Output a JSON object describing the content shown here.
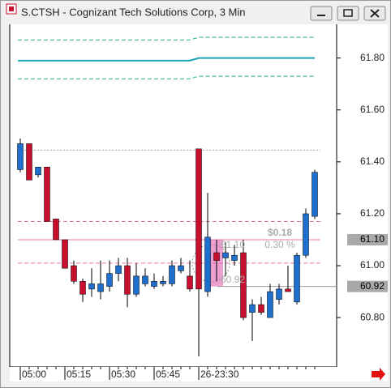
{
  "window": {
    "title": "S.CTSH - Cognizant Tech Solutions Corp, 3 Min"
  },
  "chart_data": {
    "type": "candlestick",
    "categories": [
      "05:00",
      null,
      null,
      null,
      null,
      "05:15",
      null,
      null,
      null,
      null,
      "05:30",
      null,
      null,
      null,
      null,
      "05:45",
      null,
      null,
      null,
      null,
      "26-23:30",
      null,
      null,
      null,
      null,
      null,
      null,
      null,
      null,
      null,
      null,
      null,
      null,
      null
    ],
    "open": [
      61.37,
      61.47,
      61.35,
      61.38,
      61.18,
      61.1,
      61.0,
      60.94,
      60.91,
      60.9,
      60.92,
      60.97,
      61.0,
      60.89,
      60.93,
      60.92,
      60.93,
      60.93,
      60.98,
      60.96,
      61.45,
      60.9,
      61.05,
      61.03,
      61.02,
      61.05,
      60.82,
      60.85,
      60.8,
      60.87,
      60.91,
      60.86,
      61.04,
      61.19
    ],
    "high": [
      61.49,
      61.47,
      61.38,
      61.38,
      61.18,
      61.1,
      61.02,
      60.95,
      60.99,
      61.02,
      61.02,
      61.03,
      61.03,
      61.01,
      60.99,
      60.97,
      60.96,
      61.02,
      61.03,
      61.02,
      61.45,
      61.28,
      61.1,
      61.09,
      61.08,
      61.1,
      60.87,
      60.88,
      60.93,
      60.93,
      61.0,
      61.05,
      61.22,
      61.37
    ],
    "low": [
      61.36,
      61.33,
      61.34,
      61.17,
      61.1,
      60.99,
      60.93,
      60.86,
      60.88,
      60.87,
      60.9,
      60.94,
      60.84,
      60.88,
      60.92,
      60.91,
      60.92,
      60.92,
      60.97,
      60.9,
      60.65,
      60.88,
      60.94,
      60.96,
      61.0,
      60.79,
      60.71,
      60.81,
      60.8,
      60.85,
      60.9,
      60.85,
      61.03,
      61.18
    ],
    "close": [
      61.47,
      61.33,
      61.38,
      61.17,
      61.1,
      60.99,
      60.94,
      60.89,
      60.93,
      60.93,
      60.97,
      61.0,
      60.89,
      60.96,
      60.96,
      60.94,
      60.94,
      61.0,
      61.0,
      60.91,
      60.91,
      61.11,
      61.02,
      61.05,
      61.04,
      60.8,
      60.85,
      60.82,
      60.9,
      60.91,
      60.9,
      61.04,
      61.2,
      61.36
    ],
    "up_color": "#1f6fcc",
    "down_color": "#c8102e",
    "overlays": [
      {
        "color": "#22b573",
        "style": "dashed",
        "values": [
          61.87,
          61.87,
          61.87,
          61.87,
          61.87,
          61.87,
          61.87,
          61.87,
          61.87,
          61.87,
          61.87,
          61.87,
          61.87,
          61.87,
          61.87,
          61.87,
          61.87,
          61.87,
          61.87,
          61.87,
          61.88,
          61.88,
          61.88,
          61.88,
          61.88,
          61.88,
          61.88,
          61.88,
          61.88,
          61.88,
          61.88,
          61.88,
          61.88,
          61.88
        ]
      },
      {
        "color": "#1ba5b5",
        "style": "solid",
        "values": [
          61.79,
          61.79,
          61.79,
          61.79,
          61.79,
          61.79,
          61.79,
          61.79,
          61.79,
          61.79,
          61.79,
          61.79,
          61.79,
          61.79,
          61.79,
          61.79,
          61.79,
          61.79,
          61.79,
          61.79,
          61.8,
          61.8,
          61.8,
          61.8,
          61.8,
          61.8,
          61.8,
          61.8,
          61.8,
          61.8,
          61.8,
          61.8,
          61.8,
          61.8
        ]
      },
      {
        "color": "#22b573",
        "style": "dashed",
        "values": [
          61.72,
          61.72,
          61.72,
          61.72,
          61.72,
          61.72,
          61.72,
          61.72,
          61.72,
          61.72,
          61.72,
          61.72,
          61.72,
          61.72,
          61.72,
          61.72,
          61.72,
          61.72,
          61.72,
          61.72,
          61.73,
          61.73,
          61.73,
          61.73,
          61.73,
          61.73,
          61.73,
          61.73,
          61.73,
          61.73,
          61.73,
          61.73,
          61.73,
          61.73
        ]
      }
    ],
    "reference_lines": [
      {
        "value": 61.445,
        "color": "#aaaaaa",
        "style": "dotted"
      },
      {
        "value": 61.17,
        "color": "#e879b0",
        "style": "dashed"
      },
      {
        "value": 61.1,
        "color": "#e879b0",
        "style": "solid"
      },
      {
        "value": 61.01,
        "color": "#e879b0",
        "style": "dashed"
      }
    ],
    "price_markers": [
      {
        "value": 61.1,
        "label": "61.10"
      },
      {
        "value": 60.92,
        "label": "60.92"
      }
    ],
    "annotations": [
      "$0.18",
      "0.30 %",
      "61.10",
      "60.92"
    ],
    "ylim": [
      60.61,
      61.93
    ],
    "yticks": [
      {
        "value": 60.8,
        "label": "60.80"
      },
      {
        "value": 61.0,
        "label": "61.00"
      },
      {
        "value": 61.2,
        "label": "61.20"
      },
      {
        "value": 61.4,
        "label": "61.40"
      },
      {
        "value": 61.6,
        "label": "61.60"
      },
      {
        "value": 61.8,
        "label": "61.80"
      }
    ]
  }
}
